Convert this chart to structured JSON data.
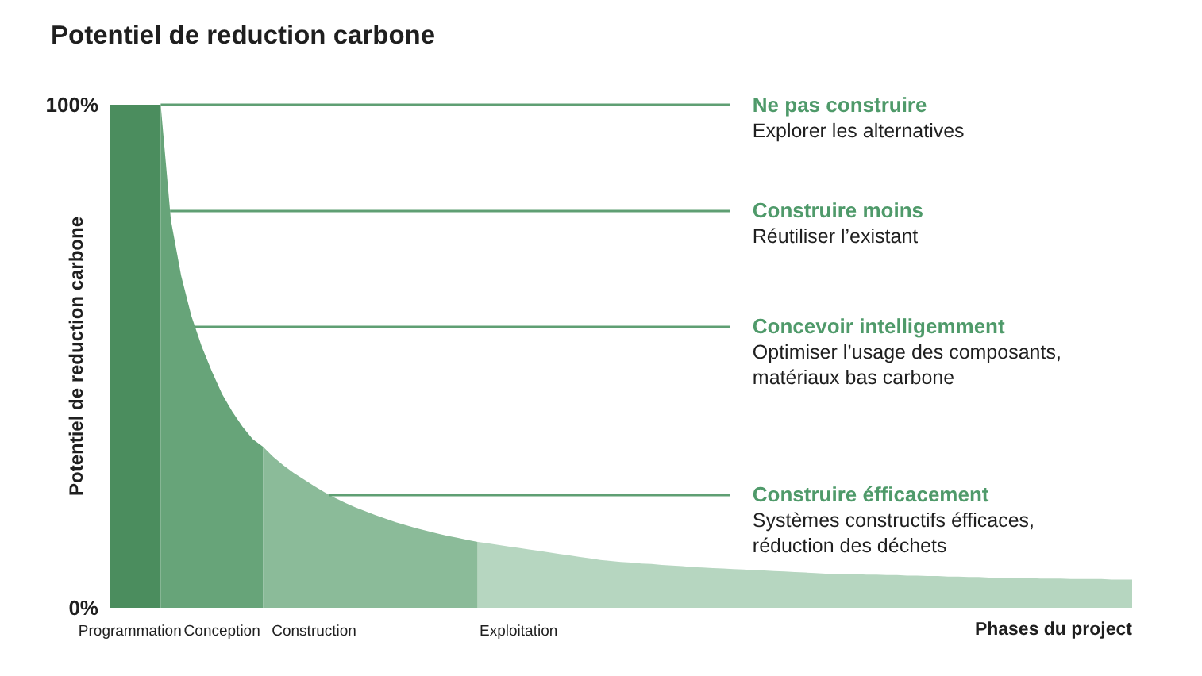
{
  "chart_data": {
    "type": "area",
    "title": "Potentiel de reduction carbone",
    "xlabel": "Phases du project",
    "ylabel": "Potentiel de reduction carbone",
    "categories": [
      null,
      null,
      "Programmation",
      null,
      null,
      null,
      null,
      null,
      null,
      null,
      null,
      "Conception",
      null,
      null,
      null,
      null,
      null,
      null,
      null,
      null,
      "Construction",
      null,
      null,
      null,
      null,
      null,
      null,
      null,
      null,
      null,
      null,
      null,
      null,
      null,
      null,
      null,
      null,
      null,
      null,
      null,
      "Exploitation",
      null,
      null,
      null,
      null,
      null,
      null,
      null,
      null,
      null,
      null,
      null,
      null,
      null,
      null,
      null,
      null,
      null,
      null,
      null,
      null,
      null,
      null,
      null,
      null,
      null,
      null,
      null,
      null,
      null,
      null,
      null,
      null,
      null,
      null,
      null,
      null,
      null,
      null,
      null,
      null,
      null,
      null,
      null,
      null,
      null,
      null,
      null,
      null,
      null,
      null,
      null,
      null,
      null,
      null,
      null,
      null,
      null,
      null,
      null,
      null
    ],
    "series": [
      {
        "color": "#4b8d5e",
        "values": [
          100,
          100,
          100,
          100,
          100,
          100,
          null,
          null,
          null,
          null,
          null,
          null,
          null,
          null,
          null,
          null,
          null,
          null,
          null,
          null,
          null,
          null,
          null,
          null,
          null,
          null,
          null,
          null,
          null,
          null,
          null,
          null,
          null,
          null,
          null,
          null,
          null,
          null,
          null,
          null,
          null,
          null,
          null,
          null,
          null,
          null,
          null,
          null,
          null,
          null,
          null,
          null,
          null,
          null,
          null,
          null,
          null,
          null,
          null,
          null,
          null,
          null,
          null,
          null,
          null,
          null,
          null,
          null,
          null,
          null,
          null,
          null,
          null,
          null,
          null,
          null,
          null,
          null,
          null,
          null,
          null,
          null,
          null,
          null,
          null,
          null,
          null,
          null,
          null,
          null,
          null,
          null,
          null,
          null,
          null,
          null,
          null,
          null,
          null,
          null,
          null
        ]
      },
      {
        "color": "#67a479",
        "values": [
          null,
          null,
          null,
          null,
          null,
          100,
          77,
          66,
          58,
          52,
          47,
          42.5,
          39,
          36,
          33.5,
          32,
          null,
          null,
          null,
          null,
          null,
          null,
          null,
          null,
          null,
          null,
          null,
          null,
          null,
          null,
          null,
          null,
          null,
          null,
          null,
          null,
          null,
          null,
          null,
          null,
          null,
          null,
          null,
          null,
          null,
          null,
          null,
          null,
          null,
          null,
          null,
          null,
          null,
          null,
          null,
          null,
          null,
          null,
          null,
          null,
          null,
          null,
          null,
          null,
          null,
          null,
          null,
          null,
          null,
          null,
          null,
          null,
          null,
          null,
          null,
          null,
          null,
          null,
          null,
          null,
          null,
          null,
          null,
          null,
          null,
          null,
          null,
          null,
          null,
          null,
          null,
          null,
          null,
          null,
          null,
          null,
          null,
          null,
          null,
          null,
          null
        ]
      },
      {
        "color": "#8bbb99",
        "values": [
          null,
          null,
          null,
          null,
          null,
          null,
          null,
          null,
          null,
          null,
          null,
          null,
          null,
          null,
          null,
          32,
          30,
          28.3,
          26.8,
          25.5,
          24.2,
          23,
          21.9,
          20.9,
          20,
          19.2,
          18.4,
          17.7,
          17,
          16.4,
          15.8,
          15.3,
          14.8,
          14.3,
          13.9,
          13.5,
          13.1,
          null,
          null,
          null,
          null,
          null,
          null,
          null,
          null,
          null,
          null,
          null,
          null,
          null,
          null,
          null,
          null,
          null,
          null,
          null,
          null,
          null,
          null,
          null,
          null,
          null,
          null,
          null,
          null,
          null,
          null,
          null,
          null,
          null,
          null,
          null,
          null,
          null,
          null,
          null,
          null,
          null,
          null,
          null,
          null,
          null,
          null,
          null,
          null,
          null,
          null,
          null,
          null,
          null,
          null,
          null,
          null,
          null,
          null,
          null,
          null,
          null,
          null,
          null,
          null
        ]
      },
      {
        "color": "#b6d6c0",
        "values": [
          null,
          null,
          null,
          null,
          null,
          null,
          null,
          null,
          null,
          null,
          null,
          null,
          null,
          null,
          null,
          null,
          null,
          null,
          null,
          null,
          null,
          null,
          null,
          null,
          null,
          null,
          null,
          null,
          null,
          null,
          null,
          null,
          null,
          null,
          null,
          null,
          13.1,
          12.8,
          12.5,
          12.2,
          11.9,
          11.6,
          11.3,
          11,
          10.7,
          10.4,
          10.1,
          9.8,
          9.5,
          9.3,
          9.1,
          9,
          8.8,
          8.7,
          8.5,
          8.4,
          8.3,
          8.1,
          8,
          7.9,
          7.8,
          7.7,
          7.6,
          7.5,
          7.4,
          7.3,
          7.2,
          7.1,
          7,
          6.9,
          6.8,
          6.8,
          6.7,
          6.7,
          6.6,
          6.6,
          6.5,
          6.5,
          6.4,
          6.4,
          6.3,
          6.3,
          6.2,
          6.2,
          6.1,
          6.1,
          6,
          6,
          5.9,
          5.9,
          5.9,
          5.8,
          5.8,
          5.8,
          5.7,
          5.7,
          5.7,
          5.7,
          5.6,
          5.6,
          5.6
        ]
      }
    ],
    "ylim": [
      0,
      100
    ],
    "yticks": [
      {
        "value": 0,
        "label": "0%"
      },
      {
        "value": 100,
        "label": "100%"
      }
    ],
    "ref_lines": [
      {
        "axis": "y",
        "value": 100,
        "label": "Ne pas construire\nExplorer les alternatives",
        "color": "#5f9f73"
      },
      {
        "axis": "y",
        "value": 79,
        "label": "Construire moins\nRéutiliser l’existant",
        "color": "#5f9f73"
      },
      {
        "axis": "y",
        "value": 56,
        "label": "Concevoir intelligemment\nOptimiser l’usage des composants,\nmatériaux bas carbone",
        "color": "#5f9f73"
      },
      {
        "axis": "y",
        "value": 22.5,
        "label": "Construire éfficacement\nSystèmes constructifs éfficaces,\nréduction des déchets",
        "color": "#5f9f73"
      }
    ]
  }
}
